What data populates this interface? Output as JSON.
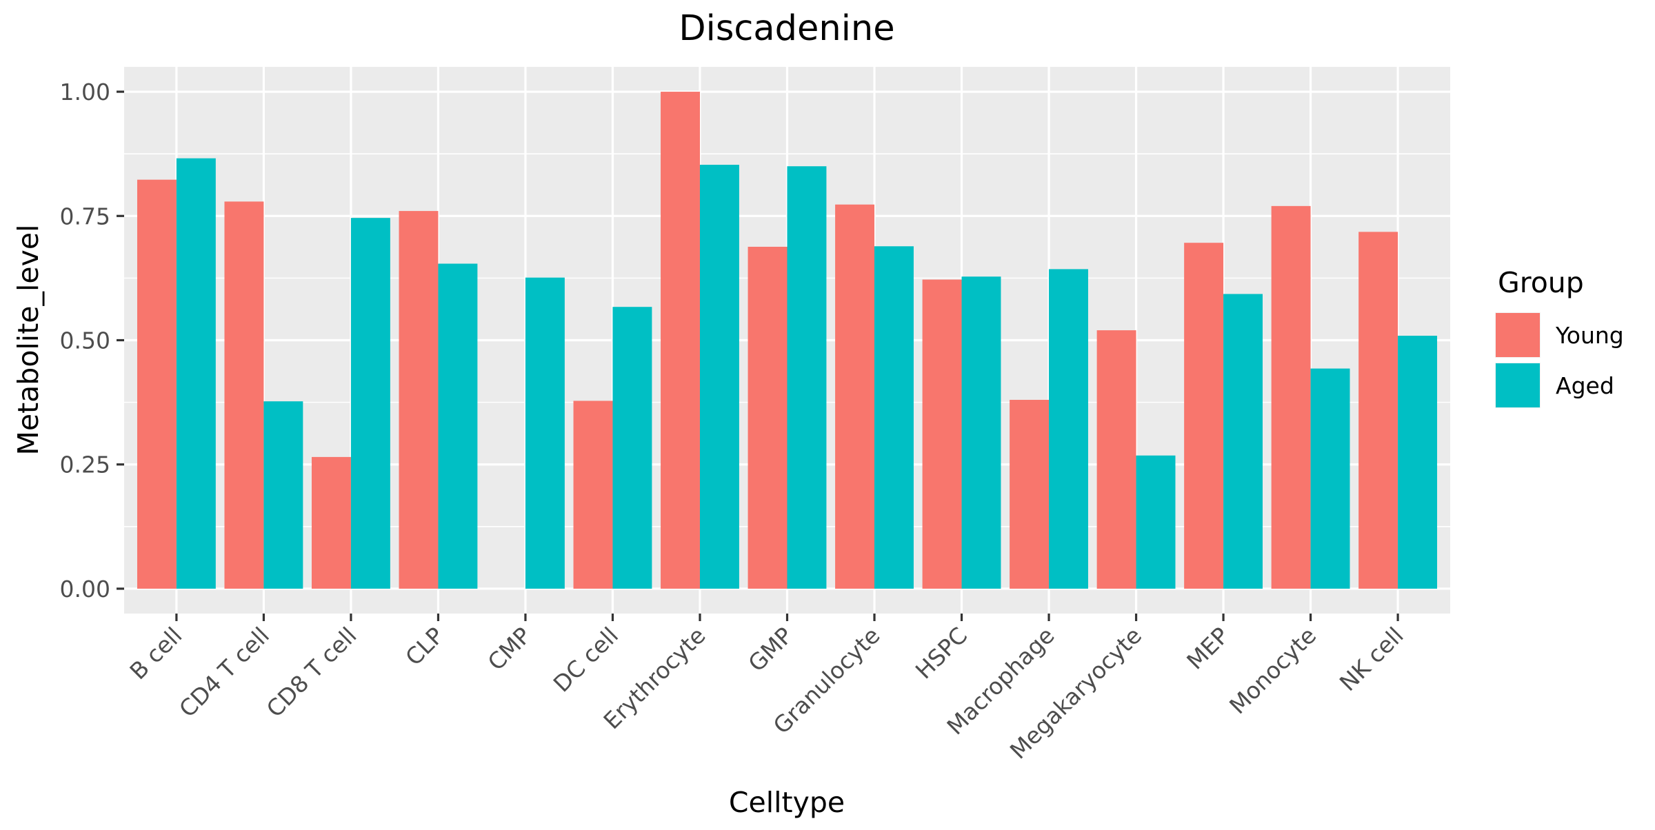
{
  "chart_data": {
    "type": "bar",
    "title": "Discadenine",
    "xlabel": "Celltype",
    "ylabel": "Metabolite_level",
    "ylim": [
      -0.05,
      1.05
    ],
    "yticks": [
      0,
      0.25,
      0.5,
      0.75,
      1.0
    ],
    "ytick_labels": [
      "0.00",
      "0.25",
      "0.50",
      "0.75",
      "1.00"
    ],
    "grid": true,
    "legend_title": "Group",
    "legend_position": "right",
    "categories": [
      "B cell",
      "CD4 T cell",
      "CD8 T cell",
      "CLP",
      "CMP",
      "DC cell",
      "Erythrocyte",
      "GMP",
      "Granulocyte",
      "HSPC",
      "Macrophage",
      "Megakaryocyte",
      "MEP",
      "Monocyte",
      "NK cell"
    ],
    "series": [
      {
        "name": "Young",
        "color": "#F8766D",
        "values": [
          0.823,
          0.779,
          0.265,
          0.76,
          0.0,
          0.378,
          1.0,
          0.688,
          0.773,
          0.622,
          0.38,
          0.52,
          0.696,
          0.77,
          0.718
        ]
      },
      {
        "name": "Aged",
        "color": "#00BFC4",
        "values": [
          0.866,
          0.377,
          0.746,
          0.654,
          0.626,
          0.567,
          0.853,
          0.85,
          0.689,
          0.628,
          0.643,
          0.268,
          0.593,
          0.443,
          0.509
        ]
      }
    ]
  }
}
